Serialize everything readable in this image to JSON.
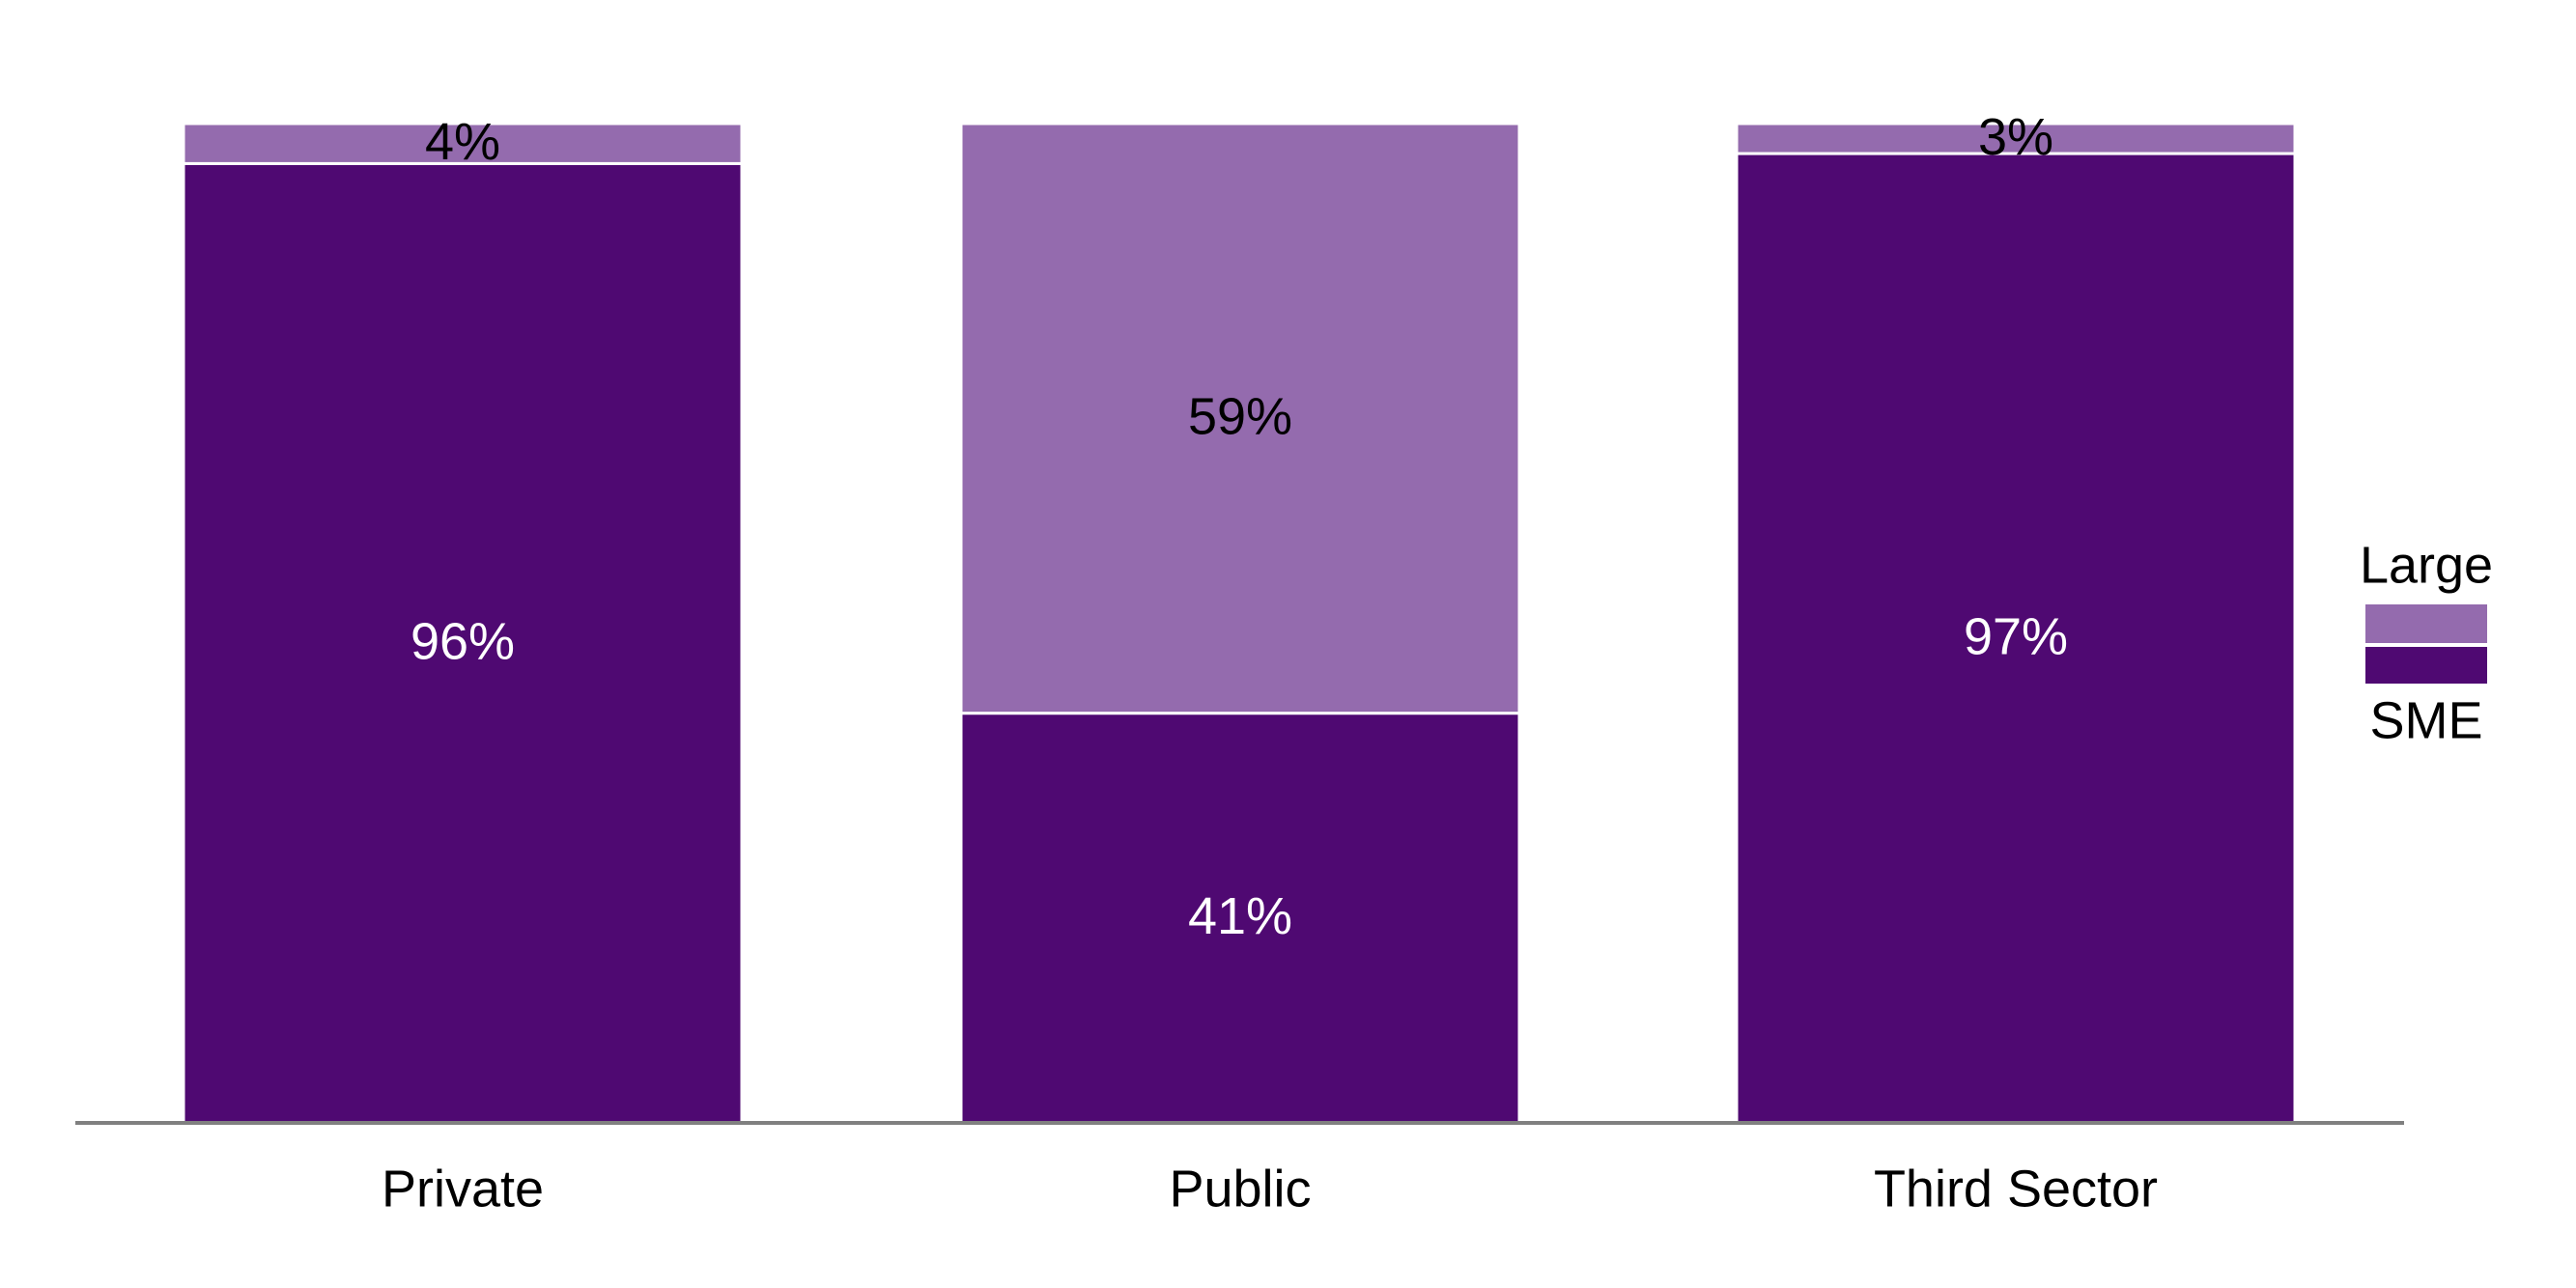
{
  "chart_data": {
    "type": "stacked-bar",
    "categories": [
      "Private",
      "Public",
      "Third Sector"
    ],
    "series": [
      {
        "name": "SME",
        "color": "#4f0972",
        "values": [
          96,
          41,
          97
        ],
        "value_labels": [
          "96%",
          "41%",
          "97%"
        ]
      },
      {
        "name": "Large",
        "color": "#946bae",
        "values": [
          4,
          59,
          3
        ],
        "value_labels": [
          "4%",
          "59%",
          "3%"
        ]
      }
    ],
    "legend": "right"
  }
}
